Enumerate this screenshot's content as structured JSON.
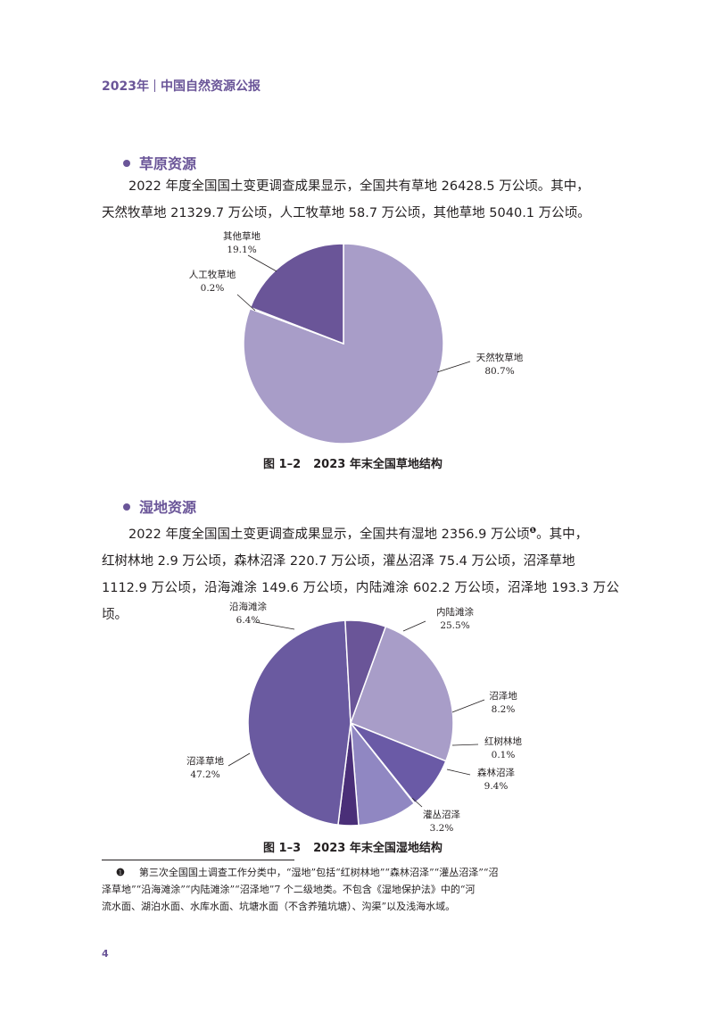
{
  "header": {
    "year": "2023年",
    "title": "中国自然资源公报"
  },
  "grassland": {
    "heading": "草原资源",
    "para1": "2022 年度全国国土变更调查成果显示，全国共有草地 26428.5 万公顷。其中，",
    "para2": "天然牧草地 21329.7 万公顷，人工牧草地 58.7 万公顷，其他草地 5040.1 万公顷。"
  },
  "wetland": {
    "heading": "湿地资源",
    "para1_a": "2022 年度全国国土变更调查成果显示，全国共有湿地 2356.9 万公顷",
    "para1_note": "❶",
    "para1_b": "。其中，",
    "para2": "红树林地 2.9 万公顷，森林沼泽 220.7 万公顷，灌丛沼泽 75.4 万公顷，沼泽草地",
    "para3": "1112.9 万公顷，沿海滩涂 149.6 万公顷，内陆滩涂 602.2 万公顷，沼泽地 193.3 万公顷。"
  },
  "chart_data": [
    {
      "type": "pie",
      "title": "2023 年末全国草地结构",
      "figure_no": "图 1–2",
      "slices": [
        {
          "name": "天然牧草地",
          "pct": "80.7%",
          "value": 80.7,
          "color": "#a89dc8"
        },
        {
          "name": "人工牧草地",
          "pct": "0.2%",
          "value": 0.2,
          "color": "#6a5598"
        },
        {
          "name": "其他草地",
          "pct": "19.1%",
          "value": 19.1,
          "color": "#6a5598"
        }
      ]
    },
    {
      "type": "pie",
      "title": "2023 年末全国湿地结构",
      "figure_no": "图 1–3",
      "slices": [
        {
          "name": "内陆滩涂",
          "pct": "25.5%",
          "value": 25.5,
          "color": "#a89dc8"
        },
        {
          "name": "沼泽地",
          "pct": "8.2%",
          "value": 8.2,
          "color": "#6a5aa6"
        },
        {
          "name": "红树林地",
          "pct": "0.1%",
          "value": 0.1,
          "color": "#6a5598"
        },
        {
          "name": "森林沼泽",
          "pct": "9.4%",
          "value": 9.4,
          "color": "#9087c2"
        },
        {
          "name": "灌丛沼泽",
          "pct": "3.2%",
          "value": 3.2,
          "color": "#4a2f78"
        },
        {
          "name": "沼泽草地",
          "pct": "47.2%",
          "value": 47.2,
          "color": "#6a5aa0"
        },
        {
          "name": "沿海滩涂",
          "pct": "6.4%",
          "value": 6.4,
          "color": "#6a5598"
        }
      ]
    }
  ],
  "footnote": {
    "mark": "❶",
    "text1": "第三次全国国土调查工作分类中，“湿地”包括“红树林地”“森林沼泽”“灌丛沼泽”“沼",
    "text2": "泽草地”“沿海滩涂”“内陆滩涂”“沼泽地”7 个二级地类。不包含《湿地保护法》中的“河",
    "text3": "流水面、湖泊水面、水库水面、坑塘水面（不含养殖坑塘）、沟渠”以及浅海水域。"
  },
  "page_number": "4"
}
